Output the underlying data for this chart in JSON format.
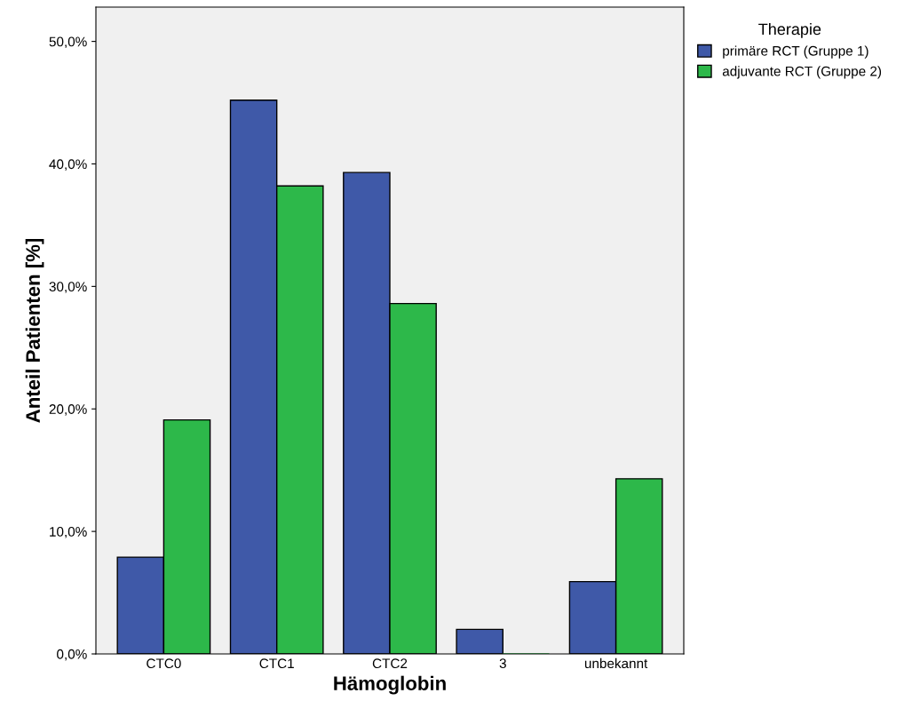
{
  "chart_data": {
    "type": "bar",
    "xlabel": "Hämoglobin",
    "ylabel": "Anteil Patienten [%]",
    "legend_title": "Therapie",
    "categories": [
      "CTC0",
      "CTC1",
      "CTC2",
      "3",
      "unbekannt"
    ],
    "series": [
      {
        "name": "primäre RCT (Gruppe 1)",
        "color": "#3f59a8",
        "values": [
          7.9,
          45.2,
          39.3,
          2.0,
          5.9
        ]
      },
      {
        "name": "adjuvante RCT (Gruppe 2)",
        "color": "#2db84a",
        "values": [
          19.1,
          38.2,
          28.6,
          0.0,
          14.3
        ]
      }
    ],
    "ylim": [
      0,
      52.8
    ],
    "yticks": [
      {
        "value": 0,
        "label": "0,0%"
      },
      {
        "value": 10,
        "label": "10,0%"
      },
      {
        "value": 20,
        "label": "20,0%"
      },
      {
        "value": 30,
        "label": "30,0%"
      },
      {
        "value": 40,
        "label": "40,0%"
      },
      {
        "value": 50,
        "label": "50,0%"
      }
    ],
    "grid": false,
    "legend": "top right"
  }
}
